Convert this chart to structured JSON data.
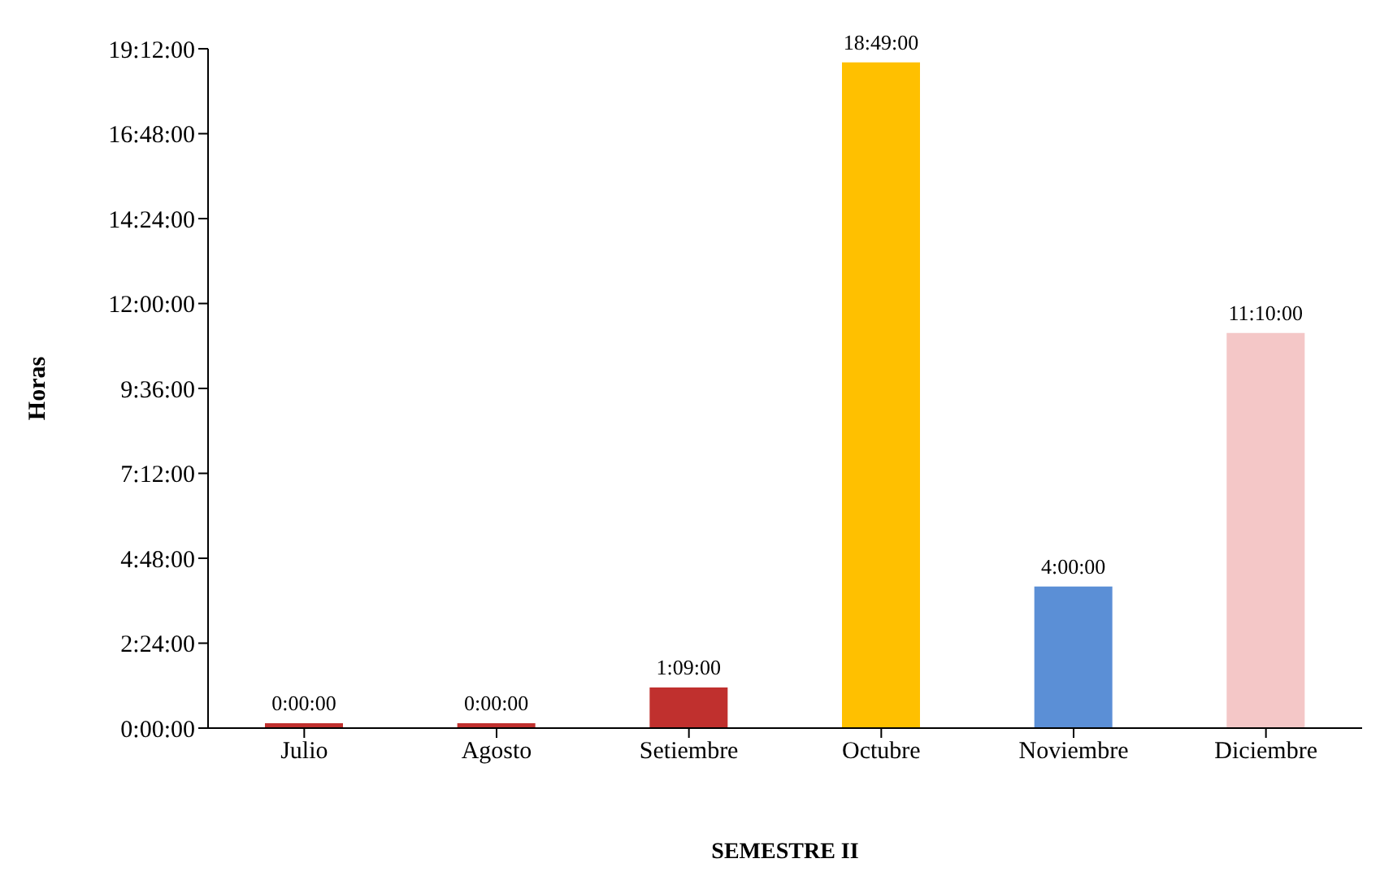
{
  "chart_data": {
    "type": "bar",
    "xlabel": "SEMESTRE II",
    "ylabel": "Horas",
    "categories": [
      "Julio",
      "Agosto",
      "Setiembre",
      "Octubre",
      "Noviembre",
      "Diciembre"
    ],
    "values": [
      0,
      0,
      1.15,
      18.8167,
      4,
      11.1667
    ],
    "colors": [
      "#c0302e",
      "#c0302e",
      "#c0302e",
      "#ffc000",
      "#5b8fd6",
      "#f4c7c7"
    ],
    "value_labels": [
      "0:00:00",
      "0:00:00",
      "1:09:00",
      "18:49:00",
      "4:00:00",
      "11:10:00"
    ],
    "ylim": [
      0,
      19.2
    ],
    "yticks": [
      {
        "value": 0,
        "label": "0:00:00"
      },
      {
        "value": 2.4,
        "label": "2:24:00"
      },
      {
        "value": 4.8,
        "label": "4:48:00"
      },
      {
        "value": 7.2,
        "label": "7:12:00"
      },
      {
        "value": 9.6,
        "label": "9:36:00"
      },
      {
        "value": 12,
        "label": "12:00:00"
      },
      {
        "value": 14.4,
        "label": "14:24:00"
      },
      {
        "value": 16.8,
        "label": "16:48:00"
      },
      {
        "value": 19.2,
        "label": "19:12:00"
      }
    ],
    "grid": false,
    "legend": false
  }
}
